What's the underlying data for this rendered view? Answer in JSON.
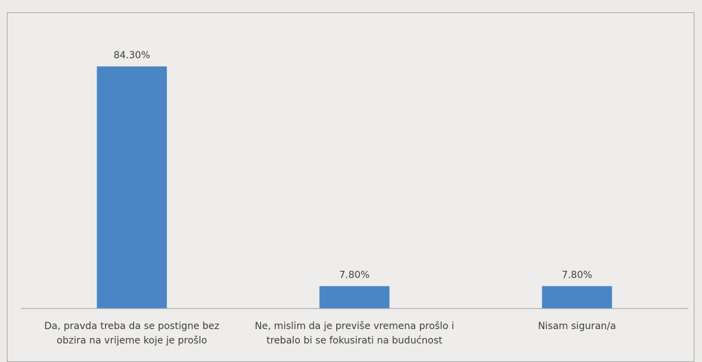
{
  "chart_data": {
    "type": "bar",
    "categories": [
      "Da, pravda treba da se postigne bez obzira na vrijeme koje je prošlo",
      "Ne, mislim da je previše vremena prošlo i trebalo bi se fokusirati na budućnost",
      "Nisam siguran/a"
    ],
    "values": [
      84.3,
      7.8,
      7.8
    ],
    "value_labels": [
      "84.30%",
      "7.80%",
      "7.80%"
    ],
    "color": "#4a86c6",
    "ylim": [
      0,
      90
    ]
  }
}
